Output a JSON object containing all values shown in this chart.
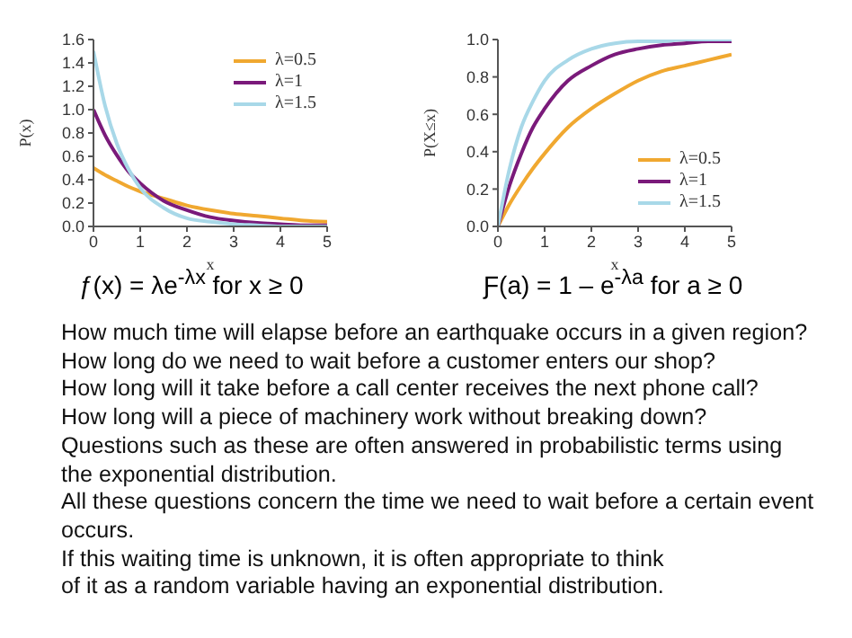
{
  "chart_data": [
    {
      "type": "line",
      "xlabel": "x",
      "ylabel": "P(x)",
      "x": [
        0,
        0.25,
        0.5,
        0.75,
        1,
        1.5,
        2,
        2.5,
        3,
        3.5,
        4,
        4.5,
        5
      ],
      "xlim": [
        0,
        5
      ],
      "xticks": [
        0,
        1,
        2,
        3,
        4,
        5
      ],
      "ylim": [
        0,
        1.6
      ],
      "yticks": [
        {
          "value": 0,
          "label": "0.0"
        },
        {
          "value": 0.2,
          "label": "0.2"
        },
        {
          "value": 0.4,
          "label": "0.4"
        },
        {
          "value": 0.6,
          "label": "0.6"
        },
        {
          "value": 0.8,
          "label": "0.8"
        },
        {
          "value": 1,
          "label": "1.0"
        },
        {
          "value": 1.2,
          "label": "1.2"
        },
        {
          "value": 1.4,
          "label": "1.4"
        },
        {
          "value": 1.6,
          "label": "1.6"
        }
      ],
      "legend": "top right",
      "marker": "none",
      "line_style": "solid",
      "grid": false,
      "series": [
        {
          "name": "λ=0.5",
          "color": "#f0a830",
          "values": [
            0.5,
            0.44,
            0.39,
            0.34,
            0.3,
            0.24,
            0.18,
            0.14,
            0.11,
            0.09,
            0.07,
            0.05,
            0.04
          ]
        },
        {
          "name": "λ=1",
          "color": "#7a1a7a",
          "values": [
            1,
            0.78,
            0.61,
            0.47,
            0.37,
            0.22,
            0.14,
            0.08,
            0.05,
            0.03,
            0.02,
            0.01,
            0.01
          ]
        },
        {
          "name": "λ=1.5",
          "color": "#a8d8e8",
          "values": [
            1.5,
            1.03,
            0.71,
            0.49,
            0.33,
            0.16,
            0.07,
            0.04,
            0.02,
            0.01,
            0,
            0,
            0
          ]
        }
      ],
      "annotations": [
        "ƒ(x) = λe$^{-λx}$ for x ≥ 0"
      ]
    },
    {
      "type": "line",
      "xlabel": "x",
      "ylabel": "P(X≤x)",
      "x": [
        0,
        0.25,
        0.5,
        0.75,
        1,
        1.5,
        2,
        2.5,
        3,
        3.5,
        4,
        4.5,
        5
      ],
      "xlim": [
        0,
        5
      ],
      "xticks": [
        0,
        1,
        2,
        3,
        4,
        5
      ],
      "ylim": [
        0,
        1
      ],
      "yticks": [
        {
          "value": 0,
          "label": "0.0"
        },
        {
          "value": 0.2,
          "label": "0.2"
        },
        {
          "value": 0.4,
          "label": "0.4"
        },
        {
          "value": 0.6,
          "label": "0.6"
        },
        {
          "value": 0.8,
          "label": "0.8"
        },
        {
          "value": 1,
          "label": "1.0"
        }
      ],
      "legend": "bottom right",
      "marker": "none",
      "line_style": "solid",
      "grid": false,
      "series": [
        {
          "name": "λ=0.5",
          "color": "#f0a830",
          "values": [
            0,
            0.12,
            0.22,
            0.31,
            0.39,
            0.53,
            0.63,
            0.71,
            0.78,
            0.83,
            0.86,
            0.89,
            0.92
          ]
        },
        {
          "name": "λ=1",
          "color": "#7a1a7a",
          "values": [
            0,
            0.22,
            0.39,
            0.53,
            0.63,
            0.78,
            0.86,
            0.92,
            0.95,
            0.97,
            0.98,
            0.99,
            0.99
          ]
        },
        {
          "name": "λ=1.5",
          "color": "#a8d8e8",
          "values": [
            0,
            0.31,
            0.53,
            0.67,
            0.78,
            0.89,
            0.95,
            0.98,
            0.99,
            0.99,
            1,
            1,
            1
          ]
        }
      ],
      "annotations": [
        "Ƒ(a) = 1 – e$^{-λa}$ for a ≥ 0"
      ]
    },
    {
      "type": "other",
      "annotations": [
        "How much time will elapse before an earthquake occurs in a given region?",
        "How long do we need to wait before a customer enters our shop?",
        "How long will it take before a call center receives the next phone call?",
        "How long will a piece of machinery work without breaking down?",
        "Questions such as these are often answered in probabilistic terms using",
        "the exponential distribution.",
        "All these questions concern the time we need to wait before a certain event",
        "occurs.",
        "If this waiting time is unknown, it is often appropriate to think",
        "of it as a random variable having an exponential distribution."
      ]
    }
  ]
}
